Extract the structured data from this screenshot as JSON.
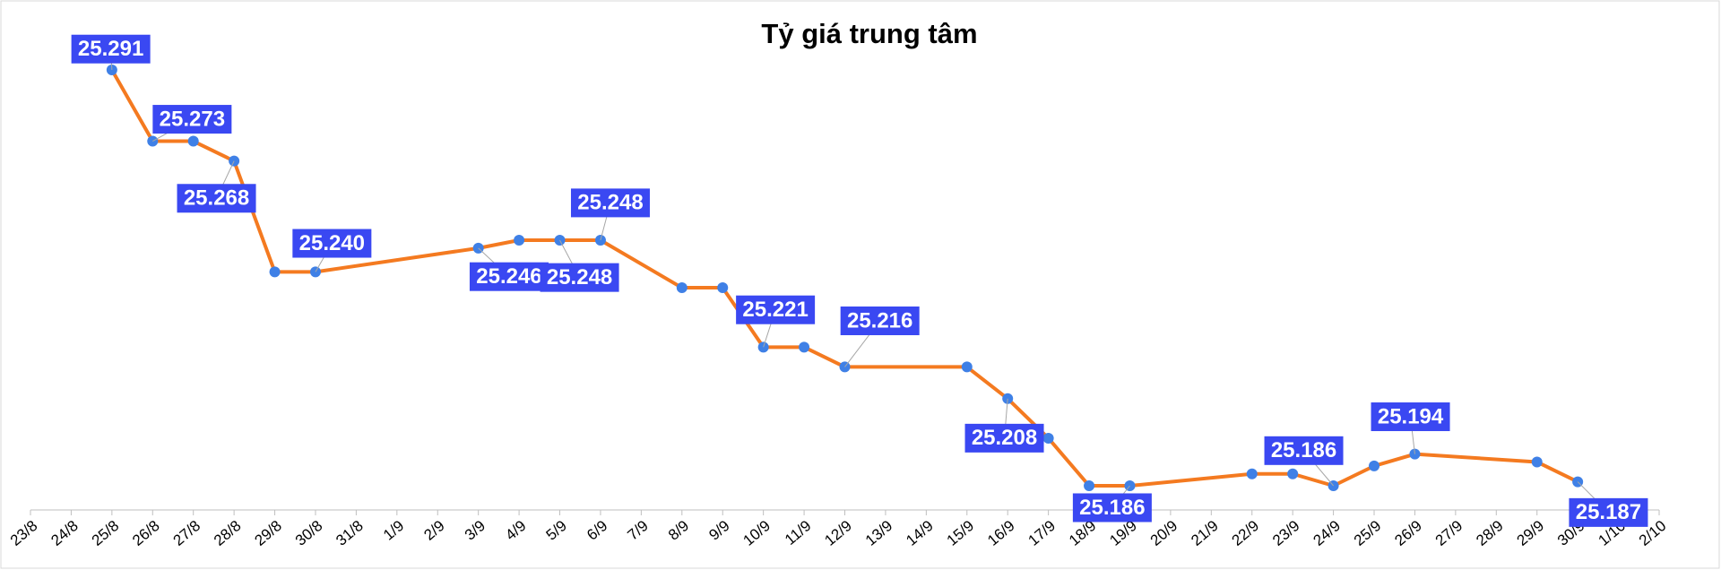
{
  "chart_data": {
    "type": "line",
    "title": "Tỷ giá trung tâm",
    "categories": [
      "23/8",
      "24/8",
      "25/8",
      "26/8",
      "27/8",
      "28/8",
      "29/8",
      "30/8",
      "31/8",
      "1/9",
      "2/9",
      "3/9",
      "4/9",
      "5/9",
      "6/9",
      "7/9",
      "8/9",
      "9/9",
      "10/9",
      "11/9",
      "12/9",
      "13/9",
      "14/9",
      "15/9",
      "16/9",
      "17/9",
      "18/9",
      "19/9",
      "20/9",
      "21/9",
      "22/9",
      "23/9",
      "24/9",
      "25/9",
      "26/9",
      "27/9",
      "28/9",
      "29/9",
      "30/9",
      "1/10",
      "2/10"
    ],
    "x": [
      "25/8",
      "26/8",
      "27/8",
      "28/8",
      "29/8",
      "30/8",
      "3/9",
      "4/9",
      "5/9",
      "6/9",
      "8/9",
      "9/9",
      "10/9",
      "11/9",
      "12/9",
      "15/9",
      "16/9",
      "17/9",
      "18/9",
      "19/9",
      "22/9",
      "23/9",
      "24/9",
      "25/9",
      "26/9",
      "29/9",
      "30/9"
    ],
    "values": [
      25.291,
      25.273,
      25.273,
      25.268,
      25.24,
      25.24,
      25.246,
      25.248,
      25.248,
      25.248,
      25.236,
      25.236,
      25.221,
      25.221,
      25.216,
      25.216,
      25.208,
      25.198,
      25.186,
      25.186,
      25.189,
      25.189,
      25.186,
      25.191,
      25.194,
      25.192,
      25.187
    ],
    "value_labels": [
      "25.291",
      "25.273",
      null,
      "25.268",
      null,
      "25.240",
      "25.246",
      null,
      "25.248",
      "25.248",
      null,
      null,
      "25.221",
      null,
      "25.216",
      null,
      "25.208",
      null,
      null,
      "25.186",
      null,
      null,
      "25.186",
      null,
      "25.194",
      null,
      "25.187"
    ],
    "color": "#f47a20",
    "marker_color": "#3f80e6",
    "label_color": "#3a48f2"
  }
}
